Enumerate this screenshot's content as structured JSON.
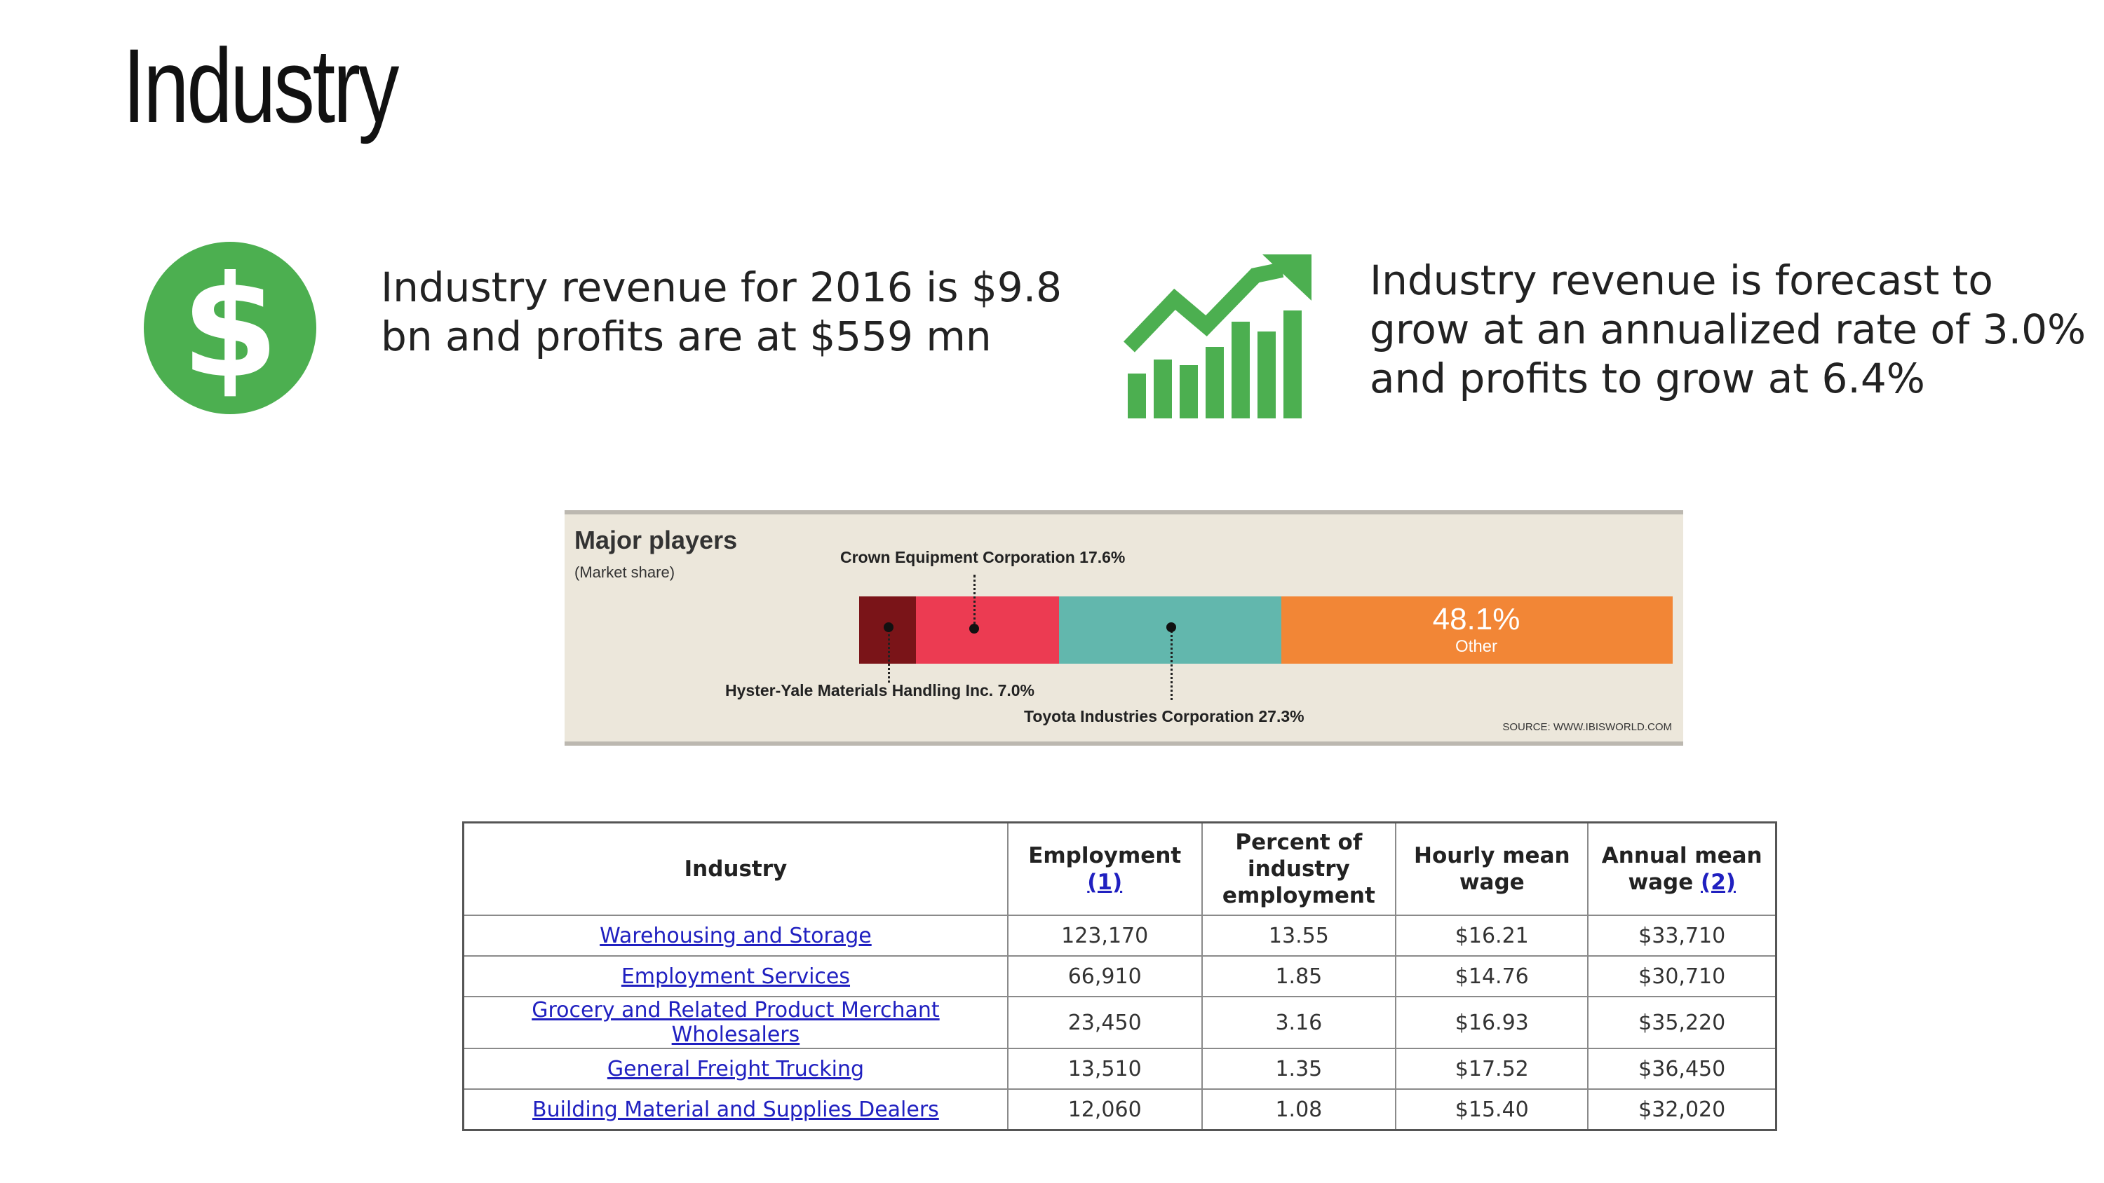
{
  "title": "Industry",
  "stats": {
    "revenue_text": "Industry revenue for 2016 is $9.8 bn and profits are at $559 mn",
    "forecast_text": "Industry revenue is forecast to grow at an annualized rate of 3.0% and profits to grow at 6.4%",
    "dollar_glyph": "$",
    "icon_color": "#4caf50"
  },
  "major_players": {
    "title": "Major players",
    "subtitle": "(Market share)",
    "label_crown": "Crown Equipment Corporation 17.6%",
    "label_hyster": "Hyster-Yale Materials Handling Inc. 7.0%",
    "label_toyota": "Toyota Industries Corporation 27.3%",
    "other_pct": "48.1%",
    "other_label": "Other",
    "source": "SOURCE: WWW.IBISWORLD.COM"
  },
  "chart_data": {
    "type": "bar",
    "categories": [
      "Hyster-Yale Materials Handling Inc.",
      "Crown Equipment Corporation",
      "Toyota Industries Corporation",
      "Other"
    ],
    "values": [
      7.0,
      17.6,
      27.3,
      48.1
    ],
    "colors": [
      "#7a1418",
      "#ec3b52",
      "#62b7ad",
      "#f28636"
    ],
    "title": "Major players",
    "subtitle": "(Market share)"
  },
  "table": {
    "headers": {
      "industry": "Industry",
      "employment": "Employment",
      "employment_note": "(1)",
      "percent_l1": "Percent of",
      "percent_l2": "industry",
      "percent_l3": "employment",
      "hourly_l1": "Hourly mean",
      "hourly_l2": "wage",
      "annual_l1": "Annual mean",
      "annual_l2": "wage",
      "annual_note": "(2)"
    },
    "rows": [
      {
        "industry": "Warehousing and Storage",
        "employment": "123,170",
        "percent": "13.55",
        "hourly": "$16.21",
        "annual": "$33,710"
      },
      {
        "industry": "Employment Services",
        "employment": "66,910",
        "percent": "1.85",
        "hourly": "$14.76",
        "annual": "$30,710"
      },
      {
        "industry": "Grocery and Related Product Merchant Wholesalers",
        "employment": "23,450",
        "percent": "3.16",
        "hourly": "$16.93",
        "annual": "$35,220"
      },
      {
        "industry": "General Freight Trucking",
        "employment": "13,510",
        "percent": "1.35",
        "hourly": "$17.52",
        "annual": "$36,450"
      },
      {
        "industry": "Building Material and Supplies Dealers",
        "employment": "12,060",
        "percent": "1.08",
        "hourly": "$15.40",
        "annual": "$32,020"
      }
    ]
  }
}
